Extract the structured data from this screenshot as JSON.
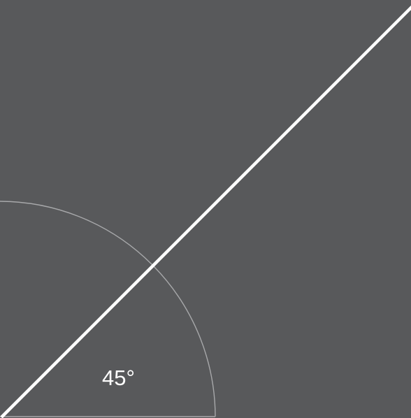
{
  "diagram": {
    "angle_label": "45°",
    "angle_degrees": 45,
    "colors": {
      "background": "#58595b",
      "line": "#ffffff",
      "arc": "#a7a8aa",
      "text": "#ffffff"
    }
  }
}
